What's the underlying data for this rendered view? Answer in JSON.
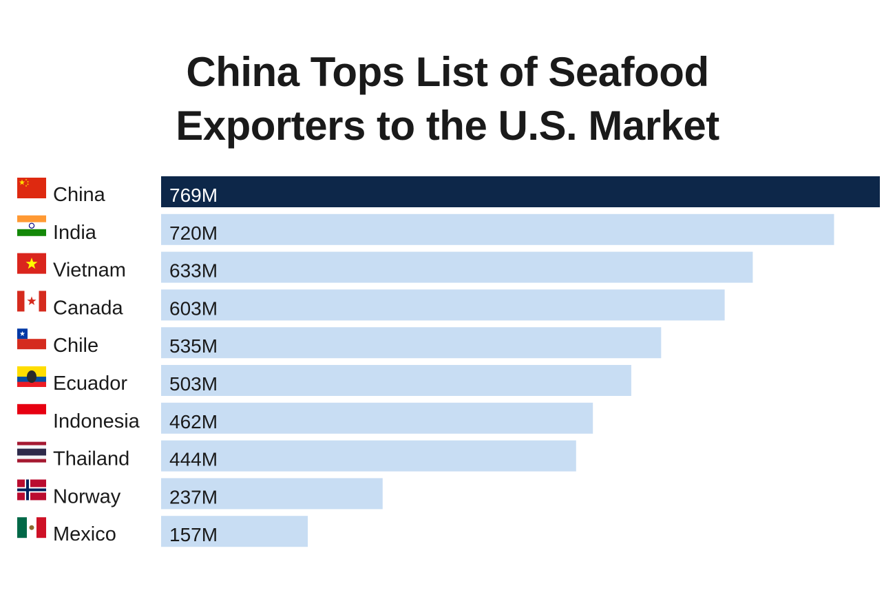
{
  "title_line1": "China Tops List of Seafood",
  "title_line2": "Exporters to the U.S. Market",
  "colors": {
    "highlight": "#0d2749",
    "bar": "#c8ddf3",
    "highlight_text": "#ffffff",
    "bar_text": "#1a1a1a"
  },
  "chart_data": {
    "type": "bar",
    "orientation": "horizontal",
    "categories": [
      "China",
      "India",
      "Vietnam",
      "Canada",
      "Chile",
      "Ecuador",
      "Indonesia",
      "Thailand",
      "Norway",
      "Mexico"
    ],
    "values": [
      769,
      720,
      633,
      603,
      535,
      503,
      462,
      444,
      237,
      157
    ],
    "value_labels": [
      "769M",
      "720M",
      "633M",
      "603M",
      "535M",
      "503M",
      "462M",
      "444M",
      "237M",
      "157M"
    ],
    "flags": [
      "china-flag-icon",
      "india-flag-icon",
      "vietnam-flag-icon",
      "canada-flag-icon",
      "chile-flag-icon",
      "ecuador-flag-icon",
      "indonesia-flag-icon",
      "thailand-flag-icon",
      "norway-flag-icon",
      "mexico-flag-icon"
    ],
    "highlight_index": 0,
    "title": "China Tops List of Seafood Exporters to the U.S. Market",
    "xlabel": "",
    "ylabel": "",
    "xlim": [
      0,
      769
    ],
    "grid": false,
    "legend": "none"
  }
}
